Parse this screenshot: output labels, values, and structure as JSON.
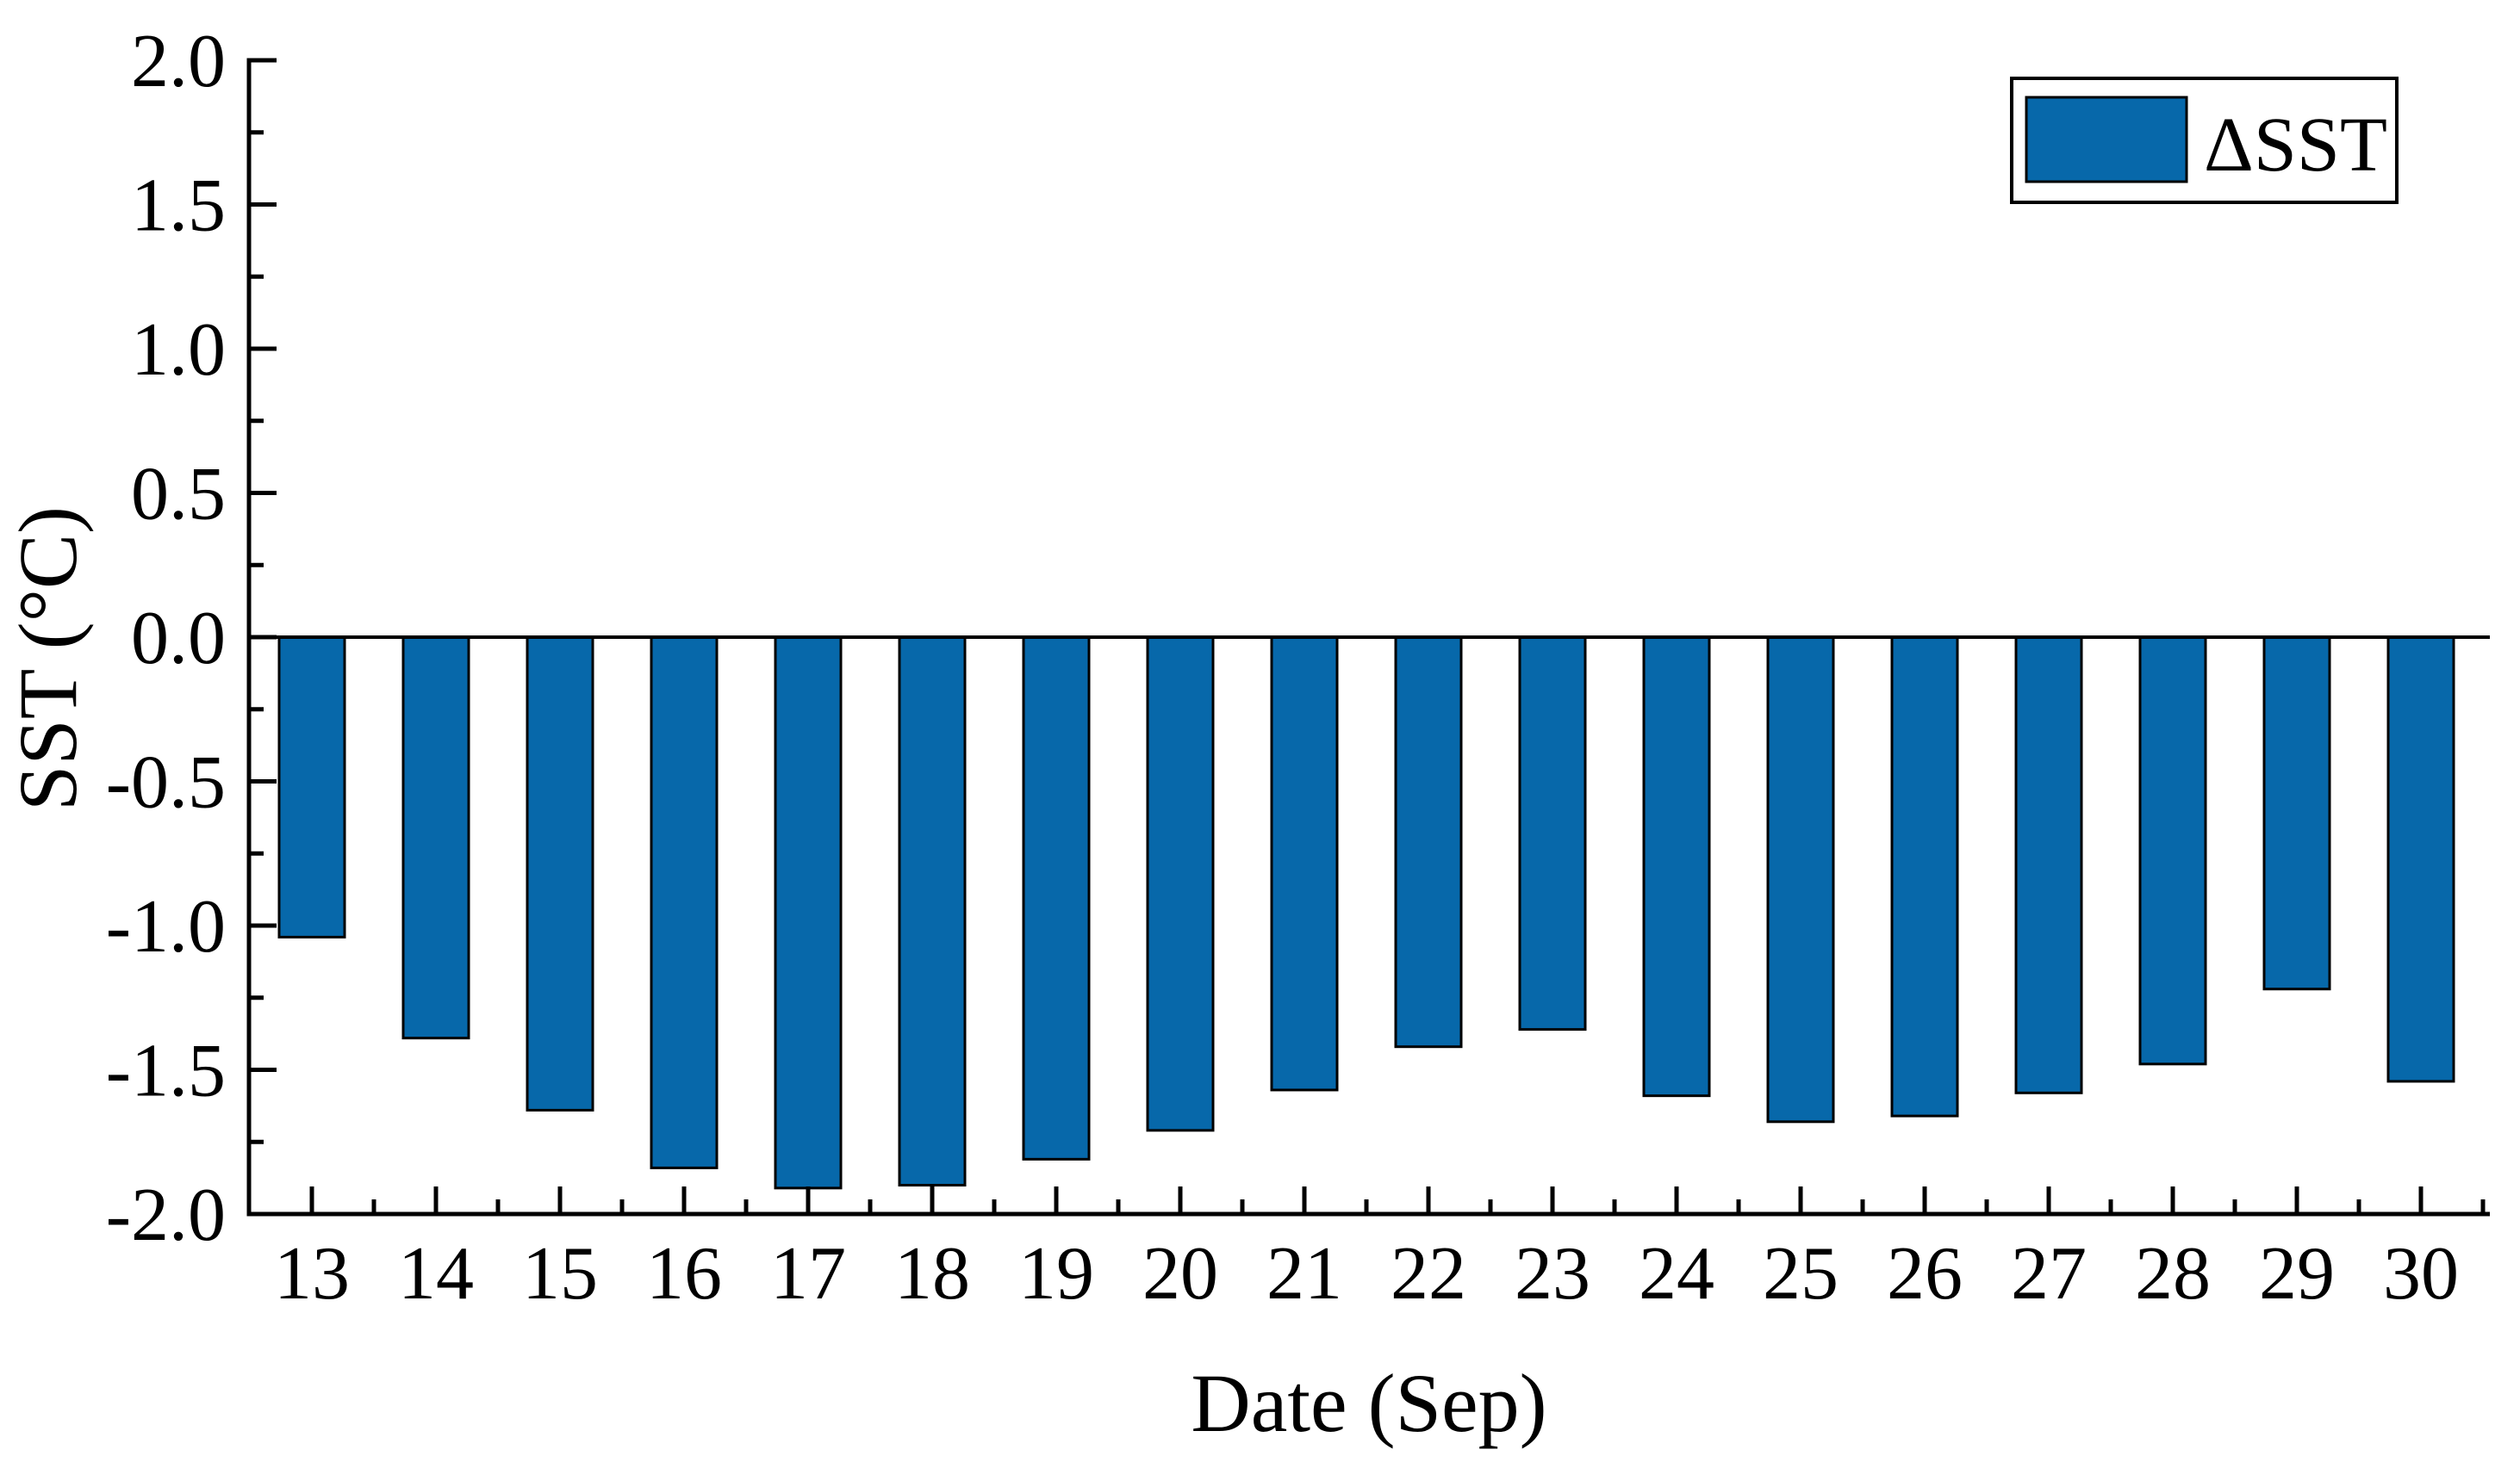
{
  "chart_data": {
    "type": "bar",
    "title": "",
    "xlabel": "Date (Sep)",
    "ylabel": "SST (°C)",
    "categories": [
      "13",
      "14",
      "15",
      "16",
      "17",
      "18",
      "19",
      "20",
      "21",
      "22",
      "23",
      "24",
      "25",
      "26",
      "27",
      "28",
      "29",
      "30"
    ],
    "series": [
      {
        "name": "ΔSST",
        "values": [
          -1.04,
          -1.39,
          -1.64,
          -1.84,
          -1.91,
          -1.9,
          -1.81,
          -1.71,
          -1.57,
          -1.42,
          -1.36,
          -1.59,
          -1.68,
          -1.66,
          -1.58,
          -1.48,
          -1.22,
          -1.54
        ]
      }
    ],
    "ylim": [
      -2.0,
      2.0
    ],
    "ytick_major_step": 0.5,
    "ytick_minor_step": 0.25,
    "yticklabels": [
      "2.0",
      "1.5",
      "1.0",
      "0.5",
      "0.0",
      "-0.5",
      "-1.0",
      "-1.5",
      "-2.0"
    ],
    "grid": false,
    "legend": {
      "position": "top-right",
      "entries": [
        {
          "label": "ΔSST",
          "swatch_color": "#0768aa"
        }
      ]
    },
    "bar_color": "#0768aa",
    "bar_border_color": "#000000",
    "axis_color": "#000000",
    "background_color": "#ffffff"
  }
}
